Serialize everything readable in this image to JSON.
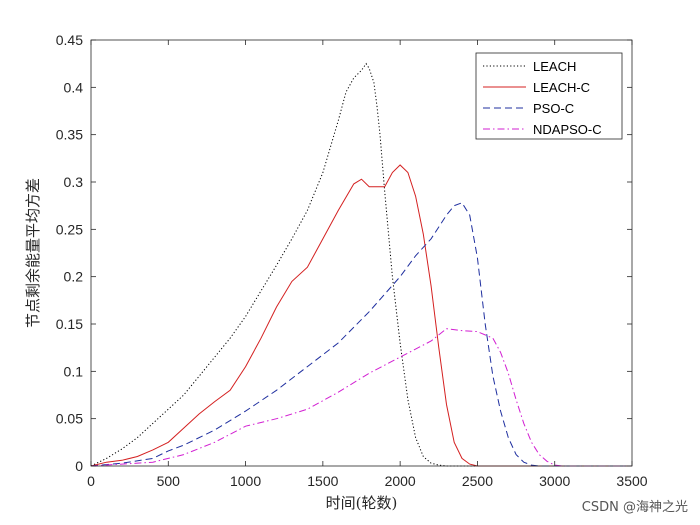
{
  "chart_data": {
    "type": "line",
    "xlabel": "时间(轮数)",
    "ylabel": "节点剩余能量平均方差",
    "xlim": [
      0,
      3500
    ],
    "ylim": [
      0,
      0.45
    ],
    "xticks": [
      0,
      500,
      1000,
      1500,
      2000,
      2500,
      3000,
      3500
    ],
    "yticks": [
      0,
      0.05,
      0.1,
      0.15,
      0.2,
      0.25,
      0.3,
      0.35,
      0.4,
      0.45
    ],
    "xtick_labels": [
      "0",
      "500",
      "1000",
      "1500",
      "2000",
      "2500",
      "3000",
      "3500"
    ],
    "ytick_labels": [
      "0",
      "0.05",
      "0.1",
      "0.15",
      "0.2",
      "0.25",
      "0.3",
      "0.35",
      "0.4",
      "0.45"
    ],
    "grid": false,
    "legend_position": "top-right",
    "series": [
      {
        "name": "LEACH",
        "color": "#000000",
        "dash": "dotted",
        "x": [
          0,
          100,
          200,
          300,
          400,
          500,
          600,
          700,
          800,
          900,
          1000,
          1100,
          1200,
          1300,
          1400,
          1500,
          1600,
          1650,
          1700,
          1750,
          1780,
          1800,
          1830,
          1850,
          1870,
          1900,
          1950,
          2000,
          2050,
          2100,
          2150,
          2200,
          2250,
          2300,
          2500,
          3500
        ],
        "values": [
          0,
          0.008,
          0.018,
          0.03,
          0.045,
          0.06,
          0.075,
          0.095,
          0.115,
          0.135,
          0.158,
          0.185,
          0.212,
          0.24,
          0.27,
          0.31,
          0.365,
          0.395,
          0.41,
          0.418,
          0.425,
          0.42,
          0.405,
          0.38,
          0.35,
          0.29,
          0.2,
          0.13,
          0.07,
          0.03,
          0.01,
          0.003,
          0.001,
          0,
          0,
          0
        ]
      },
      {
        "name": "LEACH-C",
        "color": "#d42020",
        "dash": "solid",
        "x": [
          0,
          100,
          200,
          300,
          400,
          500,
          600,
          700,
          800,
          900,
          1000,
          1100,
          1200,
          1300,
          1400,
          1500,
          1600,
          1700,
          1750,
          1800,
          1900,
          1950,
          2000,
          2050,
          2100,
          2150,
          2200,
          2250,
          2300,
          2350,
          2400,
          2450,
          2500,
          3500
        ],
        "values": [
          0,
          0.004,
          0.006,
          0.01,
          0.017,
          0.025,
          0.04,
          0.055,
          0.068,
          0.08,
          0.105,
          0.135,
          0.168,
          0.195,
          0.21,
          0.24,
          0.27,
          0.298,
          0.303,
          0.295,
          0.295,
          0.31,
          0.318,
          0.31,
          0.285,
          0.245,
          0.19,
          0.125,
          0.065,
          0.025,
          0.008,
          0.002,
          0,
          0
        ]
      },
      {
        "name": "PSO-C",
        "color": "#1f2f9f",
        "dash": "dashed",
        "x": [
          0,
          200,
          400,
          500,
          600,
          800,
          1000,
          1200,
          1400,
          1600,
          1800,
          2000,
          2100,
          2200,
          2300,
          2350,
          2400,
          2450,
          2500,
          2550,
          2600,
          2650,
          2700,
          2750,
          2800,
          2850,
          2900,
          3500
        ],
        "values": [
          0,
          0.003,
          0.008,
          0.016,
          0.022,
          0.038,
          0.058,
          0.08,
          0.105,
          0.13,
          0.163,
          0.2,
          0.222,
          0.24,
          0.265,
          0.275,
          0.278,
          0.265,
          0.22,
          0.15,
          0.095,
          0.058,
          0.03,
          0.012,
          0.004,
          0.001,
          0,
          0
        ]
      },
      {
        "name": "NDAPSO-C",
        "color": "#d21fd2",
        "dash": "dashdot",
        "x": [
          0,
          200,
          400,
          600,
          800,
          1000,
          1200,
          1400,
          1600,
          1800,
          2000,
          2200,
          2300,
          2400,
          2500,
          2600,
          2650,
          2700,
          2750,
          2800,
          2850,
          2900,
          2950,
          3000,
          3050,
          3500
        ],
        "values": [
          0,
          0.002,
          0.004,
          0.012,
          0.025,
          0.042,
          0.05,
          0.06,
          0.078,
          0.098,
          0.115,
          0.132,
          0.145,
          0.143,
          0.142,
          0.135,
          0.12,
          0.098,
          0.07,
          0.045,
          0.025,
          0.012,
          0.005,
          0.001,
          0,
          0
        ]
      }
    ]
  },
  "watermark": "CSDN @海神之光"
}
